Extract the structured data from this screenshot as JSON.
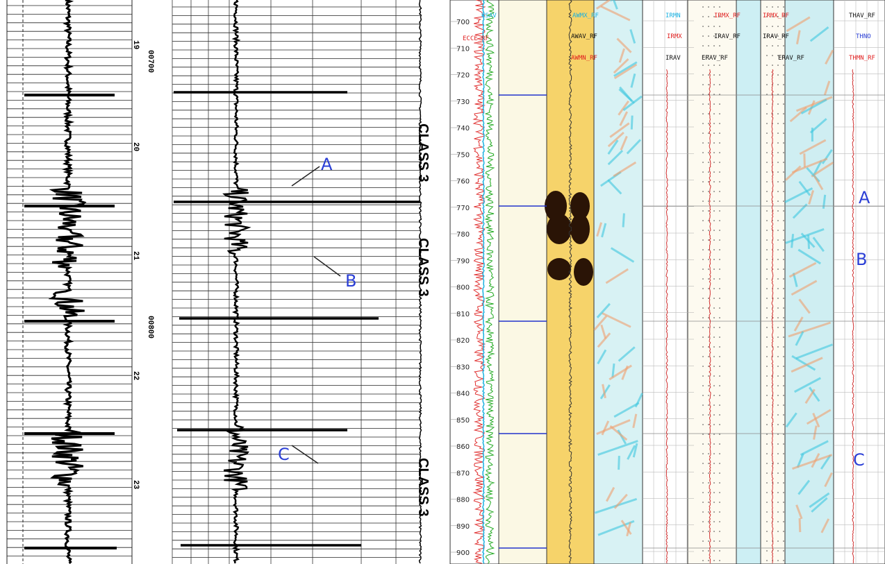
{
  "left_log": {
    "index_labels": [
      "19",
      "00700",
      "20",
      "21",
      "00800",
      "22",
      "23"
    ]
  },
  "middle_log": {
    "class_labels": [
      "CLASS 3",
      "CLASS 3",
      "CLASS 3"
    ],
    "annotations": [
      "A",
      "B",
      "C"
    ]
  },
  "right_log": {
    "depths": [
      700,
      710,
      720,
      730,
      740,
      750,
      760,
      770,
      780,
      790,
      800,
      810,
      820,
      830,
      840,
      850,
      860,
      870,
      880,
      890,
      900
    ],
    "curve_labels": [
      "RSAV",
      "ECCE_RF",
      "AWMX_RF",
      "AWAV_RF",
      "AWMN_RF",
      "IRMN",
      "IRMX",
      "IRAV",
      "IRMX_RF",
      "IRAV_RF",
      "ERAV_RF",
      "IRMX_RF",
      "IRAV_RF",
      "ERAV_RF",
      "THAV_RF",
      "THNO",
      "THMN_RF"
    ],
    "annotations": [
      "A",
      "B",
      "C"
    ]
  }
}
